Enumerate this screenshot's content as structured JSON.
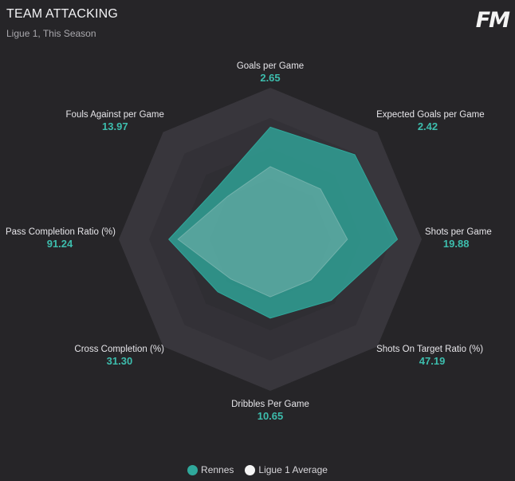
{
  "header": {
    "title": "TEAM ATTACKING",
    "subtitle": "Ligue 1, This Season",
    "logo_text": "FM"
  },
  "colors": {
    "background": "#262528",
    "accent": "#2fa89b",
    "accent_value_text": "#3dbdad",
    "average": "#f5f5f5",
    "ring_outer": "#37353b",
    "ring_inner": "#2d2c30"
  },
  "chart_data": {
    "type": "radar",
    "title": "TEAM ATTACKING",
    "subtitle": "Ligue 1, This Season",
    "axes": [
      {
        "label": "Goals per Game",
        "value_label": "2.65"
      },
      {
        "label": "Expected Goals per Game",
        "value_label": "2.42"
      },
      {
        "label": "Shots per Game",
        "value_label": "19.88"
      },
      {
        "label": "Shots On Target Ratio (%)",
        "value_label": "47.19"
      },
      {
        "label": "Dribbles Per Game",
        "value_label": "10.65"
      },
      {
        "label": "Cross Completion (%)",
        "value_label": "31.30"
      },
      {
        "label": "Pass Completion Ratio (%)",
        "value_label": "91.24"
      },
      {
        "label": "Fouls Against per Game",
        "value_label": "13.97"
      }
    ],
    "series": [
      {
        "name": "Rennes",
        "color": "#2fa89b",
        "values": [
          2.65,
          2.42,
          19.88,
          47.19,
          10.65,
          31.3,
          91.24,
          13.97
        ],
        "relative": [
          0.74,
          0.79,
          0.84,
          0.57,
          0.52,
          0.49,
          0.67,
          0.49
        ]
      },
      {
        "name": "Ligue 1 Average",
        "color": "#f5f5f5",
        "relative": [
          0.48,
          0.47,
          0.51,
          0.38,
          0.38,
          0.37,
          0.61,
          0.4
        ]
      }
    ],
    "rings": 5,
    "legend_position": "bottom-center"
  }
}
